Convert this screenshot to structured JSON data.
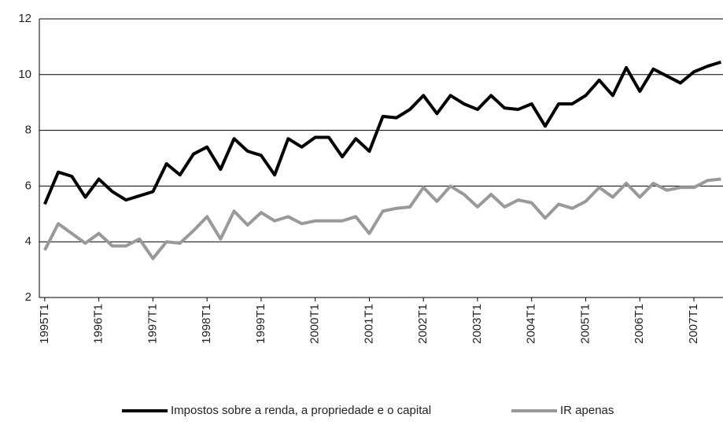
{
  "chart_data": {
    "type": "line",
    "categories": [
      "1995T1",
      null,
      null,
      null,
      "1996T1",
      null,
      null,
      null,
      "1997T1",
      null,
      null,
      null,
      "1998T1",
      null,
      null,
      null,
      "1999T1",
      null,
      null,
      null,
      "2000T1",
      null,
      null,
      null,
      "2001T1",
      null,
      null,
      null,
      "2002T1",
      null,
      null,
      null,
      "2003T1",
      null,
      null,
      null,
      "2004T1",
      null,
      null,
      null,
      "2005T1",
      null,
      null,
      null,
      "2006T1",
      null,
      null,
      null,
      "2007T1",
      null,
      null
    ],
    "series": [
      {
        "name": "Impostos sobre a renda, a propriedade e o capital",
        "color": "#000000",
        "values": [
          5.35,
          6.5,
          6.35,
          5.6,
          6.25,
          5.8,
          5.5,
          5.65,
          5.8,
          6.8,
          6.4,
          7.15,
          7.4,
          6.6,
          7.7,
          7.25,
          7.1,
          6.4,
          7.7,
          7.4,
          7.75,
          7.75,
          7.05,
          7.7,
          7.25,
          8.5,
          8.45,
          8.75,
          9.25,
          8.6,
          9.25,
          8.95,
          8.75,
          9.25,
          8.8,
          8.75,
          8.95,
          8.15,
          8.95,
          8.95,
          9.25,
          9.8,
          9.25,
          10.25,
          9.4,
          10.2,
          9.95,
          9.7,
          10.1,
          10.3,
          10.45
        ]
      },
      {
        "name": "IR apenas",
        "color": "#999999",
        "values": [
          3.7,
          4.65,
          4.3,
          3.95,
          4.3,
          3.85,
          3.85,
          4.1,
          3.4,
          4.0,
          3.95,
          4.4,
          4.9,
          4.1,
          5.1,
          4.6,
          5.05,
          4.75,
          4.9,
          4.65,
          4.75,
          4.75,
          4.75,
          4.9,
          4.3,
          5.1,
          5.2,
          5.25,
          5.95,
          5.45,
          6.0,
          5.7,
          5.25,
          5.7,
          5.25,
          5.5,
          5.4,
          4.85,
          5.35,
          5.2,
          5.45,
          5.95,
          5.6,
          6.1,
          5.6,
          6.1,
          5.85,
          5.95,
          5.95,
          6.2,
          6.25
        ]
      }
    ],
    "ylim": [
      2,
      12
    ],
    "yticks": [
      2,
      4,
      6,
      8,
      10,
      12
    ],
    "grid": true,
    "legend": "bottom"
  }
}
